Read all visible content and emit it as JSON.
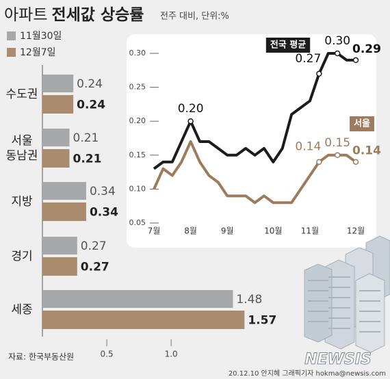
{
  "header": {
    "title_light": "아파트",
    "title_bold": "전세값 상승률",
    "subtitle": "전주 대비, 단위:%"
  },
  "chart_data": [
    {
      "type": "bar",
      "orientation": "horizontal",
      "categories": [
        "수도권",
        "서울 동남권",
        "지방",
        "경기",
        "세종"
      ],
      "series": [
        {
          "name": "11월30일",
          "color": "#a6a7a9",
          "values": [
            0.24,
            0.21,
            0.34,
            0.27,
            1.48
          ]
        },
        {
          "name": "12월7일",
          "color": "#a98b6d",
          "values": [
            0.24,
            0.21,
            0.34,
            0.27,
            1.57
          ]
        }
      ],
      "xlim": [
        0,
        1.6
      ],
      "xticks": [
        0.5,
        {
          "value": 1,
          "label": "1.0"
        }
      ]
    },
    {
      "type": "line",
      "categories": [
        "7월",
        null,
        null,
        null,
        "8월",
        null,
        null,
        null,
        "9월",
        null,
        null,
        null,
        null,
        "10월",
        null,
        null,
        null,
        "11월",
        null,
        null,
        null,
        null,
        "12월"
      ],
      "series": [
        {
          "name": "전국 평균",
          "color": "#1c1c1c",
          "values": [
            0.13,
            0.14,
            0.14,
            0.17,
            0.2,
            0.17,
            0.17,
            0.16,
            0.15,
            0.15,
            0.16,
            0.15,
            0.16,
            0.14,
            0.16,
            0.21,
            0.22,
            0.23,
            0.27,
            0.3,
            0.3,
            0.29,
            0.29
          ],
          "value_labels": [
            null,
            null,
            null,
            null,
            "0.20",
            null,
            null,
            null,
            null,
            null,
            null,
            null,
            null,
            null,
            null,
            null,
            null,
            null,
            "0.27",
            null,
            "0.30",
            null,
            "0.29"
          ]
        },
        {
          "name": "서울",
          "color": "#9d7c5d",
          "values": [
            0.1,
            0.13,
            0.12,
            0.14,
            0.17,
            0.14,
            0.12,
            0.11,
            0.09,
            0.09,
            0.09,
            0.08,
            0.09,
            0.08,
            0.08,
            0.08,
            0.1,
            0.12,
            0.14,
            0.15,
            0.15,
            0.15,
            0.14
          ],
          "value_labels": [
            null,
            null,
            null,
            null,
            null,
            null,
            null,
            null,
            null,
            null,
            null,
            null,
            null,
            null,
            null,
            null,
            null,
            null,
            "0.14",
            null,
            "0.15",
            null,
            "0.14"
          ]
        }
      ],
      "ylim": [
        0.05,
        0.3
      ],
      "yticks": [
        0.05,
        {
          "value": 0.1,
          "label": "0.10"
        },
        0.15,
        {
          "value": 0.2,
          "label": "0.20"
        },
        0.25,
        {
          "value": 0.3,
          "label": "0.30"
        }
      ]
    }
  ],
  "footer": {
    "source": "자료: 한국부동산원",
    "credit": "20.12.10 안지혜 그래픽기자 hokma@newsis.com",
    "logo": "NEWSIS"
  }
}
